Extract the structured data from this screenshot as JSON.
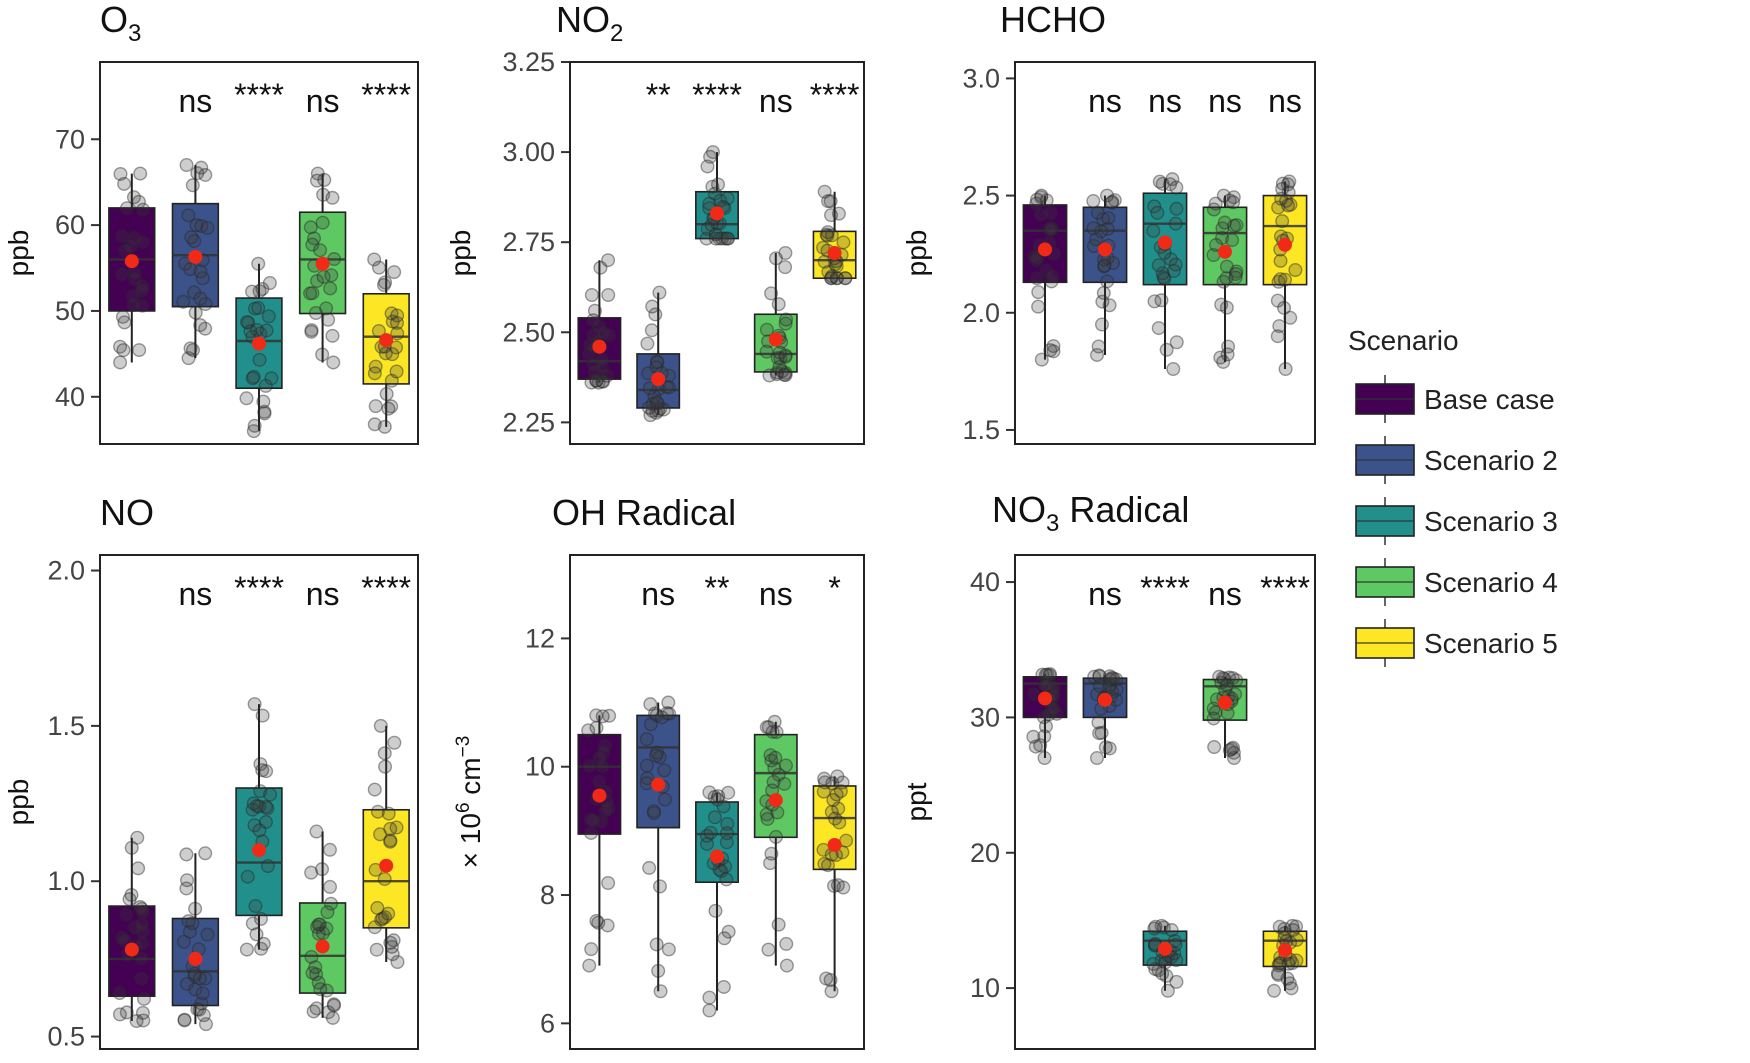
{
  "legend": {
    "title": "Scenario",
    "entries": [
      {
        "label": "Base case",
        "color": "#440154"
      },
      {
        "label": "Scenario 2",
        "color": "#3b528b"
      },
      {
        "label": "Scenario 3",
        "color": "#21908c"
      },
      {
        "label": "Scenario 4",
        "color": "#5ec962"
      },
      {
        "label": "Scenario 5",
        "color": "#fde725"
      }
    ]
  },
  "chart_data": [
    {
      "type": "box",
      "title": "O3",
      "title_main": "O",
      "title_sub": "3",
      "title_suffix": "",
      "ylabel": "ppb",
      "ylim": [
        34.5,
        79
      ],
      "yticks": [
        40,
        50,
        60,
        70
      ],
      "significance": [
        "",
        "ns",
        "****",
        "ns",
        "****"
      ],
      "boxes": [
        {
          "scenario": "Base case",
          "min": 44,
          "q1": 50,
          "median": 56,
          "q3": 62,
          "max": 66,
          "mean": 55.8
        },
        {
          "scenario": "Scenario 2",
          "min": 44.5,
          "q1": 50.5,
          "median": 56.5,
          "q3": 62.5,
          "max": 67,
          "mean": 56.3
        },
        {
          "scenario": "Scenario 3",
          "min": 36,
          "q1": 41,
          "median": 46.5,
          "q3": 51.5,
          "max": 55.5,
          "mean": 46.2
        },
        {
          "scenario": "Scenario 4",
          "min": 44,
          "q1": 49.7,
          "median": 56,
          "q3": 61.5,
          "max": 66,
          "mean": 55.5
        },
        {
          "scenario": "Scenario 5",
          "min": 36.5,
          "q1": 41.5,
          "median": 47,
          "q3": 52,
          "max": 56,
          "mean": 46.6
        }
      ]
    },
    {
      "type": "box",
      "title": "NO2",
      "title_main": "NO",
      "title_sub": "2",
      "title_suffix": "",
      "ylabel": "ppb",
      "ylim": [
        2.19,
        3.25
      ],
      "yticks": [
        2.25,
        2.5,
        2.75,
        3.0,
        3.25
      ],
      "ytick_labels": [
        "2.25",
        "2.50",
        "2.75",
        "3.00",
        "3.25"
      ],
      "significance": [
        "",
        "**",
        "****",
        "ns",
        "****"
      ],
      "boxes": [
        {
          "scenario": "Base case",
          "min": 2.36,
          "q1": 2.37,
          "median": 2.42,
          "q3": 2.54,
          "max": 2.7,
          "mean": 2.46
        },
        {
          "scenario": "Scenario 2",
          "min": 2.27,
          "q1": 2.29,
          "median": 2.34,
          "q3": 2.44,
          "max": 2.61,
          "mean": 2.37
        },
        {
          "scenario": "Scenario 3",
          "min": 2.76,
          "q1": 2.76,
          "median": 2.8,
          "q3": 2.89,
          "max": 3.0,
          "mean": 2.83
        },
        {
          "scenario": "Scenario 4",
          "min": 2.38,
          "q1": 2.39,
          "median": 2.44,
          "q3": 2.55,
          "max": 2.72,
          "mean": 2.48
        },
        {
          "scenario": "Scenario 5",
          "min": 2.65,
          "q1": 2.65,
          "median": 2.7,
          "q3": 2.78,
          "max": 2.89,
          "mean": 2.72
        }
      ]
    },
    {
      "type": "box",
      "title": "HCHO",
      "title_main": "HCHO",
      "title_sub": "",
      "title_suffix": "",
      "ylabel": "ppb",
      "ylim": [
        1.44,
        3.07
      ],
      "yticks": [
        1.5,
        2.0,
        2.5,
        3.0
      ],
      "ytick_labels": [
        "1.5",
        "2.0",
        "2.5",
        "3.0"
      ],
      "significance": [
        "",
        "ns",
        "ns",
        "ns",
        "ns"
      ],
      "boxes": [
        {
          "scenario": "Base case",
          "min": 1.8,
          "q1": 2.13,
          "median": 2.35,
          "q3": 2.46,
          "max": 2.5,
          "mean": 2.27
        },
        {
          "scenario": "Scenario 2",
          "min": 1.82,
          "q1": 2.13,
          "median": 2.35,
          "q3": 2.45,
          "max": 2.5,
          "mean": 2.27
        },
        {
          "scenario": "Scenario 3",
          "min": 1.76,
          "q1": 2.12,
          "median": 2.38,
          "q3": 2.51,
          "max": 2.57,
          "mean": 2.3
        },
        {
          "scenario": "Scenario 4",
          "min": 1.79,
          "q1": 2.12,
          "median": 2.34,
          "q3": 2.45,
          "max": 2.5,
          "mean": 2.26
        },
        {
          "scenario": "Scenario 5",
          "min": 1.76,
          "q1": 2.12,
          "median": 2.37,
          "q3": 2.5,
          "max": 2.56,
          "mean": 2.29
        }
      ]
    },
    {
      "type": "box",
      "title": "NO",
      "title_main": "NO",
      "title_sub": "",
      "title_suffix": "",
      "ylabel": "ppb",
      "ylim": [
        0.46,
        2.05
      ],
      "yticks": [
        0.5,
        1.0,
        1.5,
        2.0
      ],
      "ytick_labels": [
        "0.5",
        "1.0",
        "1.5",
        "2.0"
      ],
      "significance": [
        "",
        "ns",
        "****",
        "ns",
        "****"
      ],
      "boxes": [
        {
          "scenario": "Base case",
          "min": 0.55,
          "q1": 0.63,
          "median": 0.75,
          "q3": 0.92,
          "max": 1.14,
          "mean": 0.78
        },
        {
          "scenario": "Scenario 2",
          "min": 0.54,
          "q1": 0.6,
          "median": 0.71,
          "q3": 0.88,
          "max": 1.09,
          "mean": 0.75
        },
        {
          "scenario": "Scenario 3",
          "min": 0.78,
          "q1": 0.89,
          "median": 1.06,
          "q3": 1.3,
          "max": 1.57,
          "mean": 1.1
        },
        {
          "scenario": "Scenario 4",
          "min": 0.56,
          "q1": 0.64,
          "median": 0.76,
          "q3": 0.93,
          "max": 1.16,
          "mean": 0.79
        },
        {
          "scenario": "Scenario 5",
          "min": 0.74,
          "q1": 0.85,
          "median": 1.0,
          "q3": 1.23,
          "max": 1.5,
          "mean": 1.05
        }
      ]
    },
    {
      "type": "box",
      "title": "OH Radical",
      "title_main": "OH Radical",
      "title_sub": "",
      "title_suffix": "",
      "ylabel": "× 10⁶ cm⁻³",
      "ylabel_base": "× 10",
      "ylabel_exp": "6",
      "ylabel_unit": " cm",
      "ylabel_unit_exp": "−3",
      "ylim": [
        5.6,
        13.3
      ],
      "yticks": [
        6,
        8,
        10,
        12
      ],
      "significance": [
        "",
        "ns",
        "**",
        "ns",
        "*"
      ],
      "boxes": [
        {
          "scenario": "Base case",
          "min": 6.9,
          "q1": 8.95,
          "median": 10.0,
          "q3": 10.5,
          "max": 10.8,
          "mean": 9.55
        },
        {
          "scenario": "Scenario 2",
          "min": 6.5,
          "q1": 9.05,
          "median": 10.3,
          "q3": 10.8,
          "max": 11.0,
          "mean": 9.72
        },
        {
          "scenario": "Scenario 3",
          "min": 6.2,
          "q1": 8.2,
          "median": 8.95,
          "q3": 9.45,
          "max": 9.6,
          "mean": 8.6
        },
        {
          "scenario": "Scenario 4",
          "min": 6.9,
          "q1": 8.9,
          "median": 9.9,
          "q3": 10.5,
          "max": 10.7,
          "mean": 9.48
        },
        {
          "scenario": "Scenario 5",
          "min": 6.5,
          "q1": 8.4,
          "median": 9.2,
          "q3": 9.7,
          "max": 9.85,
          "mean": 8.78
        }
      ]
    },
    {
      "type": "box",
      "title": "NO3 Radical",
      "title_main": "NO",
      "title_sub": "3",
      "title_suffix": " Radical",
      "ylabel": "ppt",
      "ylim": [
        5.5,
        42
      ],
      "yticks": [
        10,
        20,
        30,
        40
      ],
      "significance": [
        "",
        "ns",
        "****",
        "ns",
        "****"
      ],
      "boxes": [
        {
          "scenario": "Base case",
          "min": 27,
          "q1": 30,
          "median": 32.5,
          "q3": 33,
          "max": 33.2,
          "mean": 31.4
        },
        {
          "scenario": "Scenario 2",
          "min": 27,
          "q1": 30,
          "median": 32.5,
          "q3": 32.9,
          "max": 33.1,
          "mean": 31.3
        },
        {
          "scenario": "Scenario 3",
          "min": 9.8,
          "q1": 11.7,
          "median": 13.5,
          "q3": 14.2,
          "max": 14.6,
          "mean": 12.9
        },
        {
          "scenario": "Scenario 4",
          "min": 27,
          "q1": 29.8,
          "median": 32.3,
          "q3": 32.8,
          "max": 33.0,
          "mean": 31.1
        },
        {
          "scenario": "Scenario 5",
          "min": 9.8,
          "q1": 11.6,
          "median": 13.5,
          "q3": 14.2,
          "max": 14.6,
          "mean": 12.8
        }
      ]
    }
  ]
}
